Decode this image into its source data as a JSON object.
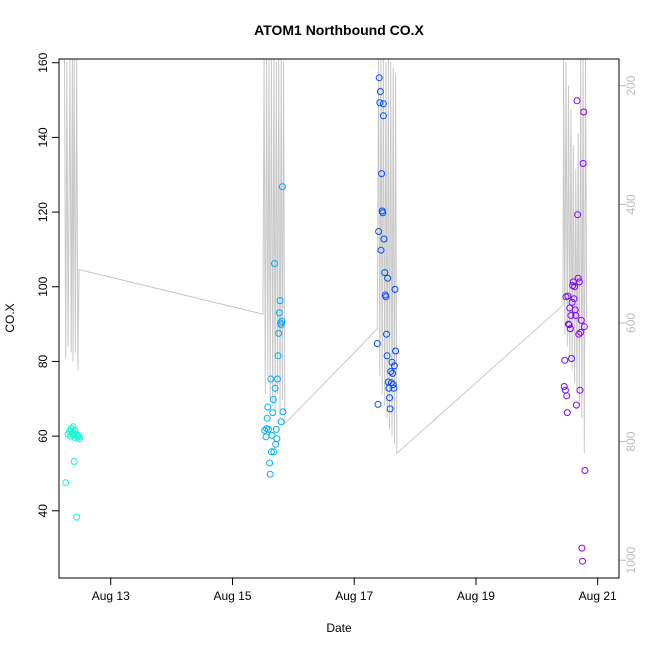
{
  "chart_data": {
    "type": "scatter",
    "title": "ATOM1 Northbound CO.X",
    "xlabel": "Date",
    "ylabel": "CO.X",
    "xlim": [
      12.15,
      21.35
    ],
    "ylim": [
      22,
      161
    ],
    "x_ticks": [
      {
        "value": 13,
        "label": "Aug 13"
      },
      {
        "value": 15,
        "label": "Aug 15"
      },
      {
        "value": 17,
        "label": "Aug 17"
      },
      {
        "value": 19,
        "label": "Aug 19"
      },
      {
        "value": 21,
        "label": "Aug 21"
      }
    ],
    "y_ticks": [
      40,
      60,
      80,
      100,
      120,
      140,
      160
    ],
    "y2_ticks": [
      200,
      400,
      600,
      800,
      1000
    ],
    "y2lim": [
      1030,
      155
    ],
    "y2_color": "#bdbdbd",
    "depth_line_color": "#c8c8c8",
    "color_scale": [
      "#00ffcc",
      "#00ccff",
      "#0033ff",
      "#8800ff"
    ],
    "points": [
      [
        12.26,
        47.5
      ],
      [
        12.3,
        60.5
      ],
      [
        12.32,
        61.2
      ],
      [
        12.34,
        60.0
      ],
      [
        12.35,
        62.0
      ],
      [
        12.37,
        60.8
      ],
      [
        12.38,
        62.5
      ],
      [
        12.39,
        60.3
      ],
      [
        12.4,
        53.2
      ],
      [
        12.41,
        61.5
      ],
      [
        12.42,
        59.5
      ],
      [
        12.43,
        60.5
      ],
      [
        12.44,
        38.3
      ],
      [
        12.46,
        59.8
      ],
      [
        12.47,
        60.2
      ],
      [
        12.49,
        59.3
      ],
      [
        15.53,
        61.5
      ],
      [
        15.55,
        59.8
      ],
      [
        15.56,
        62.0
      ],
      [
        15.57,
        64.8
      ],
      [
        15.58,
        67.8
      ],
      [
        15.59,
        61.8
      ],
      [
        15.61,
        52.8
      ],
      [
        15.62,
        49.8
      ],
      [
        15.63,
        75.3
      ],
      [
        15.64,
        55.8
      ],
      [
        15.65,
        60.2
      ],
      [
        15.66,
        66.3
      ],
      [
        15.67,
        69.8
      ],
      [
        15.68,
        55.8
      ],
      [
        15.69,
        106.2
      ],
      [
        15.7,
        72.8
      ],
      [
        15.71,
        57.8
      ],
      [
        15.72,
        61.8
      ],
      [
        15.73,
        59.3
      ],
      [
        15.74,
        75.3
      ],
      [
        15.75,
        81.5
      ],
      [
        15.76,
        87.5
      ],
      [
        15.77,
        93.0
      ],
      [
        15.78,
        96.3
      ],
      [
        15.79,
        90.3
      ],
      [
        15.8,
        89.8
      ],
      [
        15.81,
        90.8
      ],
      [
        15.82,
        126.8
      ],
      [
        15.83,
        66.5
      ],
      [
        15.8,
        63.8
      ],
      [
        17.38,
        84.8
      ],
      [
        17.39,
        68.5
      ],
      [
        17.4,
        114.8
      ],
      [
        17.41,
        156.0
      ],
      [
        17.42,
        149.3
      ],
      [
        17.43,
        152.3
      ],
      [
        17.44,
        109.8
      ],
      [
        17.45,
        130.3
      ],
      [
        17.46,
        120.3
      ],
      [
        17.47,
        119.8
      ],
      [
        17.48,
        145.8
      ],
      [
        17.49,
        112.8
      ],
      [
        17.5,
        103.8
      ],
      [
        17.51,
        97.8
      ],
      [
        17.52,
        97.3
      ],
      [
        17.53,
        87.3
      ],
      [
        17.54,
        81.5
      ],
      [
        17.55,
        102.3
      ],
      [
        17.56,
        74.5
      ],
      [
        17.57,
        72.8
      ],
      [
        17.58,
        70.3
      ],
      [
        17.59,
        67.3
      ],
      [
        17.6,
        77.3
      ],
      [
        17.61,
        74.3
      ],
      [
        17.62,
        79.8
      ],
      [
        17.63,
        76.8
      ],
      [
        17.64,
        73.8
      ],
      [
        17.65,
        72.8
      ],
      [
        17.66,
        78.8
      ],
      [
        17.67,
        99.3
      ],
      [
        17.68,
        82.8
      ],
      [
        17.48,
        149.0
      ],
      [
        20.45,
        73.3
      ],
      [
        20.46,
        80.3
      ],
      [
        20.47,
        72.3
      ],
      [
        20.48,
        97.3
      ],
      [
        20.49,
        70.8
      ],
      [
        20.5,
        66.3
      ],
      [
        20.51,
        97.5
      ],
      [
        20.52,
        90.0
      ],
      [
        20.53,
        89.8
      ],
      [
        20.54,
        94.3
      ],
      [
        20.55,
        88.8
      ],
      [
        20.56,
        92.3
      ],
      [
        20.57,
        80.8
      ],
      [
        20.58,
        95.8
      ],
      [
        20.59,
        100.3
      ],
      [
        20.6,
        101.3
      ],
      [
        20.61,
        96.8
      ],
      [
        20.62,
        100.0
      ],
      [
        20.63,
        93.8
      ],
      [
        20.64,
        92.3
      ],
      [
        20.65,
        68.3
      ],
      [
        20.66,
        149.8
      ],
      [
        20.67,
        119.3
      ],
      [
        20.68,
        102.3
      ],
      [
        20.69,
        87.3
      ],
      [
        20.7,
        101.3
      ],
      [
        20.71,
        72.3
      ],
      [
        20.72,
        87.8
      ],
      [
        20.73,
        91.0
      ],
      [
        20.74,
        30.0
      ],
      [
        20.75,
        26.5
      ],
      [
        20.76,
        133.0
      ],
      [
        20.77,
        146.8
      ],
      [
        20.78,
        89.3
      ],
      [
        20.79,
        50.8
      ]
    ],
    "depth_profile": [
      [
        12.24,
        140
      ],
      [
        12.26,
        660
      ],
      [
        12.28,
        160
      ],
      [
        12.3,
        640
      ],
      [
        12.33,
        150
      ],
      [
        12.35,
        650
      ],
      [
        12.37,
        150
      ],
      [
        12.38,
        665
      ],
      [
        12.4,
        150
      ],
      [
        12.42,
        650
      ],
      [
        12.44,
        150
      ],
      [
        12.46,
        680
      ],
      [
        12.48,
        510
      ],
      [
        15.5,
        585
      ],
      [
        15.52,
        140
      ],
      [
        15.54,
        720
      ],
      [
        15.56,
        150
      ],
      [
        15.58,
        690
      ],
      [
        15.6,
        150
      ],
      [
        15.62,
        730
      ],
      [
        15.64,
        150
      ],
      [
        15.66,
        740
      ],
      [
        15.68,
        150
      ],
      [
        15.7,
        750
      ],
      [
        15.72,
        160
      ],
      [
        15.74,
        720
      ],
      [
        15.76,
        150
      ],
      [
        15.78,
        760
      ],
      [
        15.8,
        150
      ],
      [
        15.82,
        730
      ],
      [
        15.84,
        160
      ],
      [
        15.86,
        770
      ],
      [
        17.38,
        610
      ],
      [
        17.4,
        140
      ],
      [
        17.42,
        690
      ],
      [
        17.44,
        150
      ],
      [
        17.46,
        720
      ],
      [
        17.48,
        150
      ],
      [
        17.5,
        740
      ],
      [
        17.52,
        160
      ],
      [
        17.54,
        760
      ],
      [
        17.56,
        150
      ],
      [
        17.58,
        780
      ],
      [
        17.6,
        160
      ],
      [
        17.62,
        790
      ],
      [
        17.64,
        170
      ],
      [
        17.66,
        805
      ],
      [
        17.68,
        180
      ],
      [
        17.7,
        820
      ],
      [
        20.43,
        570
      ],
      [
        20.44,
        150
      ],
      [
        20.46,
        620
      ],
      [
        20.48,
        160
      ],
      [
        20.5,
        640
      ],
      [
        20.52,
        200
      ],
      [
        20.54,
        660
      ],
      [
        20.56,
        240
      ],
      [
        20.58,
        680
      ],
      [
        20.6,
        300
      ],
      [
        20.62,
        700
      ],
      [
        20.64,
        340
      ],
      [
        20.66,
        720
      ],
      [
        20.68,
        280
      ],
      [
        20.7,
        740
      ],
      [
        20.72,
        150
      ],
      [
        20.74,
        760
      ],
      [
        20.76,
        150
      ],
      [
        20.78,
        820
      ],
      [
        20.8,
        150
      ],
      [
        20.82,
        600
      ]
    ]
  }
}
